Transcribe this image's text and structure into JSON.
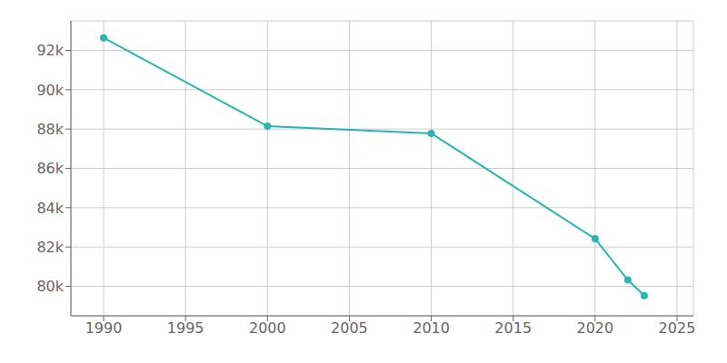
{
  "chart_data": {
    "type": "line",
    "x": [
      1990,
      2000,
      2010,
      2020,
      2022,
      2023
    ],
    "values": [
      92639,
      88145,
      87779,
      82418,
      80321,
      79526
    ],
    "color": "#2AB5B5",
    "marker": "circle",
    "xlim": [
      1988,
      2026
    ],
    "ylim": [
      78500,
      93500
    ],
    "xticks": [
      1990,
      1995,
      2000,
      2005,
      2010,
      2015,
      2020,
      2025
    ],
    "yticks": [
      {
        "value": 80000,
        "label": "80k"
      },
      {
        "value": 82000,
        "label": "82k"
      },
      {
        "value": 84000,
        "label": "84k"
      },
      {
        "value": 86000,
        "label": "86k"
      },
      {
        "value": 88000,
        "label": "88k"
      },
      {
        "value": 90000,
        "label": "90k"
      },
      {
        "value": 92000,
        "label": "92k"
      }
    ],
    "grid": true
  }
}
